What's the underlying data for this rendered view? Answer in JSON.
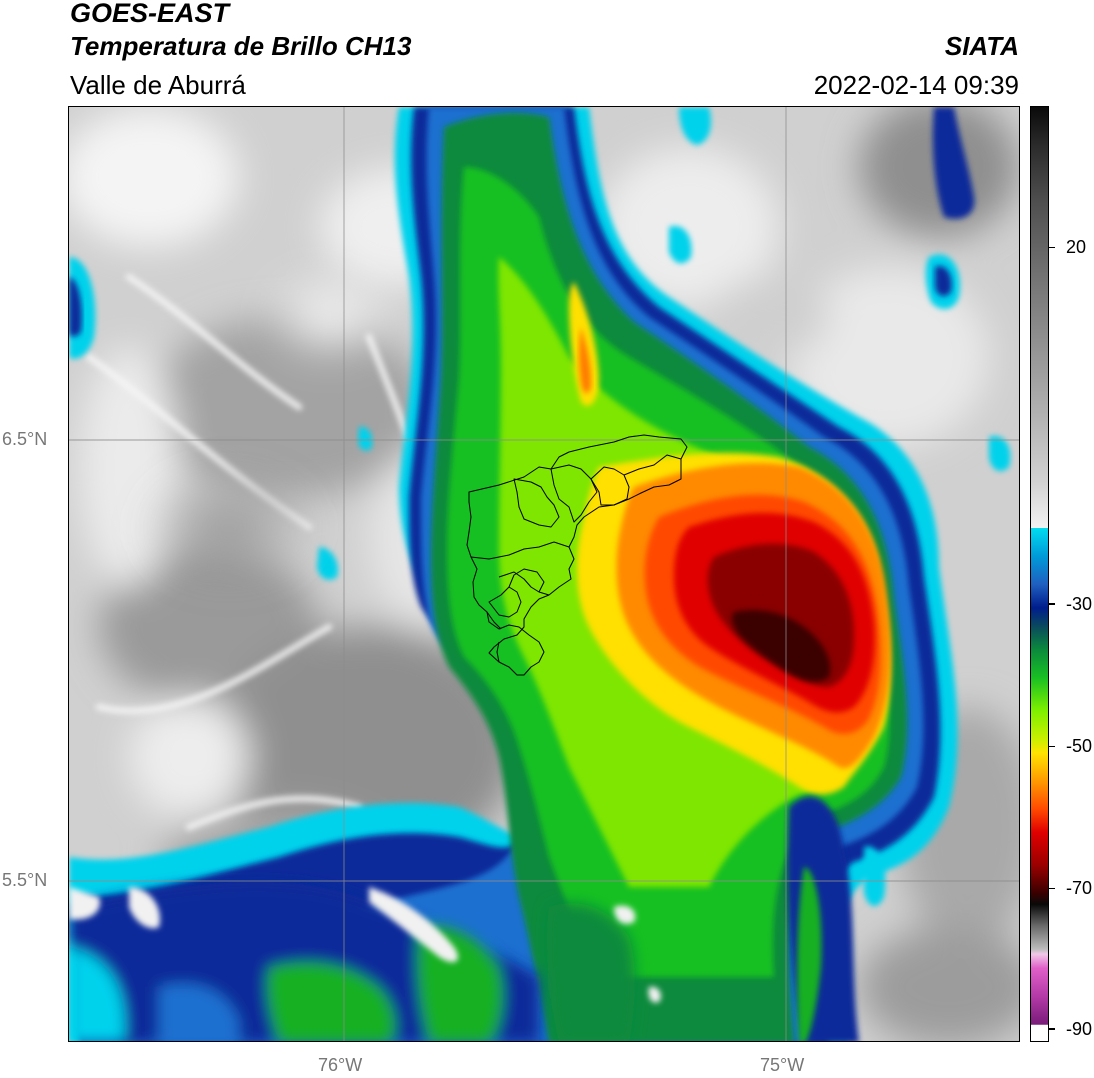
{
  "header": {
    "satellite": "GOES-EAST",
    "product": "Temperatura de Brillo CH13",
    "region": "Valle de Aburrá",
    "organization": "SIATA",
    "timestamp": "2022-02-14 09:39"
  },
  "map": {
    "lat_labels": [
      "6.5°N",
      "5.5°N"
    ],
    "lon_labels": [
      "76°W",
      "75°W"
    ]
  },
  "colorbar": {
    "tick_labels": [
      "20",
      "-30",
      "-50",
      "-70",
      "-90"
    ],
    "tick_values": [
      20,
      -30,
      -50,
      -70,
      -90
    ],
    "range": [
      -93,
      36
    ],
    "colors": {
      "warm_gray_light": "#f2f2f2",
      "warm_gray_dark": "#7a7a7a",
      "cyan": "#00d8f0",
      "deep_blue": "#001d8c",
      "green": "#0eb31e",
      "lime": "#8cf000",
      "yellow": "#ffe400",
      "orange": "#ff8200",
      "red": "#e40000",
      "dark_red": "#5a0000",
      "magenta": "#c030c0"
    }
  }
}
